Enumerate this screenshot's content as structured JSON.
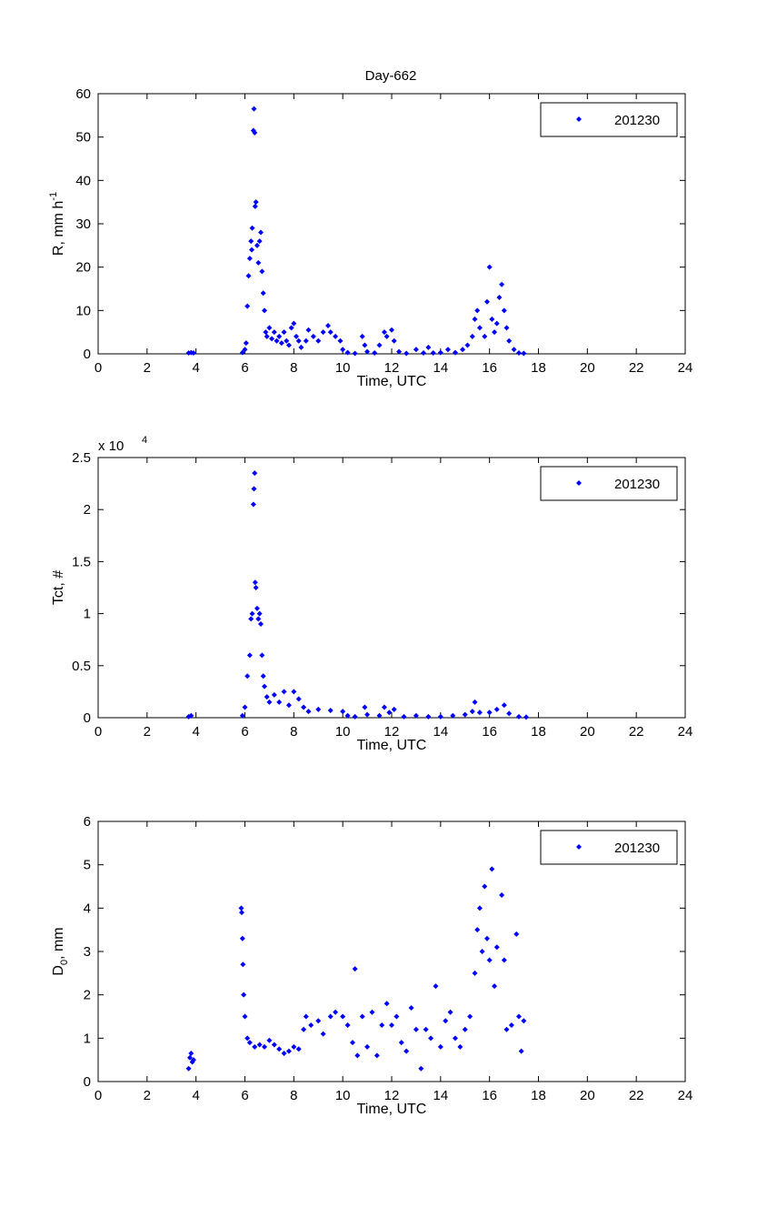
{
  "figure_title": "Day-662",
  "colors": {
    "marker": "#0000ff",
    "axis": "#000000"
  },
  "chart_data": [
    {
      "type": "scatter",
      "title": "Day-662",
      "xlabel": "Time, UTC",
      "ylabel_main": "R, mm h",
      "ylabel_sup": "-1",
      "xlim": [
        0,
        24
      ],
      "ylim": [
        0,
        60
      ],
      "xticks": [
        0,
        2,
        4,
        6,
        8,
        10,
        12,
        14,
        16,
        18,
        20,
        22,
        24
      ],
      "yticks": [
        0,
        10,
        20,
        30,
        40,
        50,
        60
      ],
      "legend": {
        "label": "201230",
        "position": "top-right"
      },
      "series": [
        {
          "name": "201230",
          "points": [
            [
              3.7,
              0.2
            ],
            [
              3.8,
              0.3
            ],
            [
              3.9,
              0.2
            ],
            [
              5.9,
              0.3
            ],
            [
              6.0,
              1
            ],
            [
              6.05,
              2.5
            ],
            [
              6.1,
              11
            ],
            [
              6.15,
              18
            ],
            [
              6.2,
              22
            ],
            [
              6.25,
              26
            ],
            [
              6.28,
              24
            ],
            [
              6.3,
              29
            ],
            [
              6.35,
              51.5
            ],
            [
              6.37,
              56.5
            ],
            [
              6.4,
              51
            ],
            [
              6.42,
              34
            ],
            [
              6.45,
              35
            ],
            [
              6.5,
              25
            ],
            [
              6.55,
              21
            ],
            [
              6.6,
              26
            ],
            [
              6.65,
              28
            ],
            [
              6.7,
              19
            ],
            [
              6.75,
              14
            ],
            [
              6.8,
              10
            ],
            [
              6.85,
              5
            ],
            [
              6.9,
              4
            ],
            [
              7.0,
              6
            ],
            [
              7.1,
              3.5
            ],
            [
              7.2,
              5
            ],
            [
              7.3,
              3
            ],
            [
              7.4,
              4
            ],
            [
              7.5,
              2.5
            ],
            [
              7.6,
              5
            ],
            [
              7.7,
              3
            ],
            [
              7.8,
              2
            ],
            [
              7.9,
              6
            ],
            [
              8.0,
              7
            ],
            [
              8.1,
              4
            ],
            [
              8.2,
              3
            ],
            [
              8.3,
              1.5
            ],
            [
              8.5,
              3
            ],
            [
              8.6,
              5.5
            ],
            [
              8.8,
              4
            ],
            [
              9.0,
              3
            ],
            [
              9.2,
              5
            ],
            [
              9.4,
              6.5
            ],
            [
              9.5,
              5
            ],
            [
              9.7,
              4
            ],
            [
              9.9,
              3
            ],
            [
              10.0,
              1
            ],
            [
              10.2,
              0.3
            ],
            [
              10.5,
              0.1
            ],
            [
              10.8,
              4
            ],
            [
              10.9,
              2
            ],
            [
              11.0,
              0.5
            ],
            [
              11.3,
              0.2
            ],
            [
              11.5,
              2
            ],
            [
              11.7,
              5
            ],
            [
              11.8,
              4
            ],
            [
              12.0,
              5.5
            ],
            [
              12.1,
              3
            ],
            [
              12.3,
              0.5
            ],
            [
              12.6,
              0.1
            ],
            [
              13.0,
              1
            ],
            [
              13.3,
              0.2
            ],
            [
              13.5,
              1.5
            ],
            [
              13.7,
              0.2
            ],
            [
              14.0,
              0.3
            ],
            [
              14.3,
              1
            ],
            [
              14.6,
              0.3
            ],
            [
              14.9,
              1
            ],
            [
              15.1,
              2
            ],
            [
              15.3,
              4
            ],
            [
              15.4,
              8
            ],
            [
              15.5,
              10
            ],
            [
              15.6,
              6
            ],
            [
              15.8,
              4
            ],
            [
              15.9,
              12
            ],
            [
              16.0,
              20
            ],
            [
              16.1,
              8
            ],
            [
              16.2,
              5
            ],
            [
              16.3,
              7
            ],
            [
              16.4,
              13
            ],
            [
              16.5,
              16
            ],
            [
              16.6,
              10
            ],
            [
              16.7,
              6
            ],
            [
              16.8,
              3
            ],
            [
              17.0,
              1
            ],
            [
              17.2,
              0.2
            ],
            [
              17.4,
              0.1
            ]
          ]
        }
      ]
    },
    {
      "type": "scatter",
      "xlabel": "Time, UTC",
      "ylabel_main": "Tct, #",
      "scale_label": "x 10",
      "scale_exp": "4",
      "xlim": [
        0,
        24
      ],
      "ylim": [
        0,
        2.5
      ],
      "xticks": [
        0,
        2,
        4,
        6,
        8,
        10,
        12,
        14,
        16,
        18,
        20,
        22,
        24
      ],
      "yticks": [
        0,
        0.5,
        1,
        1.5,
        2,
        2.5
      ],
      "ytick_labels": [
        "0",
        "0.5",
        "1",
        "1.5",
        "2",
        "2.5"
      ],
      "legend": {
        "label": "201230",
        "position": "top-right"
      },
      "series": [
        {
          "name": "201230",
          "points": [
            [
              3.7,
              0.01
            ],
            [
              3.8,
              0.02
            ],
            [
              5.9,
              0.02
            ],
            [
              6.0,
              0.1
            ],
            [
              6.1,
              0.4
            ],
            [
              6.2,
              0.6
            ],
            [
              6.25,
              0.95
            ],
            [
              6.3,
              1.0
            ],
            [
              6.35,
              2.05
            ],
            [
              6.37,
              2.2
            ],
            [
              6.4,
              2.35
            ],
            [
              6.42,
              1.3
            ],
            [
              6.45,
              1.25
            ],
            [
              6.5,
              1.05
            ],
            [
              6.55,
              0.95
            ],
            [
              6.6,
              1.0
            ],
            [
              6.65,
              0.9
            ],
            [
              6.7,
              0.6
            ],
            [
              6.75,
              0.4
            ],
            [
              6.8,
              0.3
            ],
            [
              6.9,
              0.2
            ],
            [
              7.0,
              0.15
            ],
            [
              7.2,
              0.22
            ],
            [
              7.4,
              0.15
            ],
            [
              7.6,
              0.25
            ],
            [
              7.8,
              0.12
            ],
            [
              8.0,
              0.25
            ],
            [
              8.2,
              0.18
            ],
            [
              8.4,
              0.1
            ],
            [
              8.6,
              0.06
            ],
            [
              9.0,
              0.08
            ],
            [
              9.5,
              0.07
            ],
            [
              10.0,
              0.06
            ],
            [
              10.2,
              0.02
            ],
            [
              10.5,
              0.01
            ],
            [
              10.9,
              0.1
            ],
            [
              11.0,
              0.03
            ],
            [
              11.5,
              0.02
            ],
            [
              11.7,
              0.1
            ],
            [
              11.9,
              0.05
            ],
            [
              12.1,
              0.08
            ],
            [
              12.5,
              0.01
            ],
            [
              13.0,
              0.02
            ],
            [
              13.5,
              0.01
            ],
            [
              14.0,
              0.01
            ],
            [
              14.5,
              0.02
            ],
            [
              15.0,
              0.03
            ],
            [
              15.3,
              0.06
            ],
            [
              15.4,
              0.15
            ],
            [
              15.6,
              0.05
            ],
            [
              16.0,
              0.05
            ],
            [
              16.3,
              0.08
            ],
            [
              16.6,
              0.12
            ],
            [
              16.8,
              0.04
            ],
            [
              17.2,
              0.01
            ],
            [
              17.5,
              0.005
            ]
          ]
        }
      ]
    },
    {
      "type": "scatter",
      "xlabel": "Time, UTC",
      "ylabel_main": "D",
      "ylabel_sub": "0",
      "ylabel_tail": ", mm",
      "xlim": [
        0,
        24
      ],
      "ylim": [
        0,
        6
      ],
      "xticks": [
        0,
        2,
        4,
        6,
        8,
        10,
        12,
        14,
        16,
        18,
        20,
        22,
        24
      ],
      "yticks": [
        0,
        1,
        2,
        3,
        4,
        5,
        6
      ],
      "legend": {
        "label": "201230",
        "position": "top-right"
      },
      "series": [
        {
          "name": "201230",
          "points": [
            [
              3.7,
              0.3
            ],
            [
              3.75,
              0.55
            ],
            [
              3.8,
              0.65
            ],
            [
              3.85,
              0.45
            ],
            [
              3.9,
              0.5
            ],
            [
              5.85,
              4.0
            ],
            [
              5.87,
              3.9
            ],
            [
              5.9,
              3.3
            ],
            [
              5.92,
              2.7
            ],
            [
              5.95,
              2.0
            ],
            [
              6.0,
              1.5
            ],
            [
              6.1,
              1.0
            ],
            [
              6.2,
              0.9
            ],
            [
              6.4,
              0.8
            ],
            [
              6.6,
              0.85
            ],
            [
              6.8,
              0.8
            ],
            [
              7.0,
              0.95
            ],
            [
              7.2,
              0.85
            ],
            [
              7.4,
              0.75
            ],
            [
              7.6,
              0.65
            ],
            [
              7.8,
              0.7
            ],
            [
              8.0,
              0.8
            ],
            [
              8.2,
              0.75
            ],
            [
              8.4,
              1.2
            ],
            [
              8.5,
              1.5
            ],
            [
              8.7,
              1.3
            ],
            [
              9.0,
              1.4
            ],
            [
              9.2,
              1.1
            ],
            [
              9.5,
              1.5
            ],
            [
              9.7,
              1.6
            ],
            [
              10.0,
              1.5
            ],
            [
              10.2,
              1.3
            ],
            [
              10.4,
              0.9
            ],
            [
              10.5,
              2.6
            ],
            [
              10.6,
              0.6
            ],
            [
              10.8,
              1.5
            ],
            [
              11.0,
              0.8
            ],
            [
              11.2,
              1.6
            ],
            [
              11.4,
              0.6
            ],
            [
              11.6,
              1.3
            ],
            [
              11.8,
              1.8
            ],
            [
              12.0,
              1.3
            ],
            [
              12.2,
              1.5
            ],
            [
              12.4,
              0.9
            ],
            [
              12.6,
              0.7
            ],
            [
              12.8,
              1.7
            ],
            [
              13.0,
              1.2
            ],
            [
              13.2,
              0.3
            ],
            [
              13.4,
              1.2
            ],
            [
              13.6,
              1.0
            ],
            [
              13.8,
              2.2
            ],
            [
              14.0,
              0.8
            ],
            [
              14.2,
              1.4
            ],
            [
              14.4,
              1.6
            ],
            [
              14.6,
              1.0
            ],
            [
              14.8,
              0.8
            ],
            [
              15.0,
              1.2
            ],
            [
              15.2,
              1.5
            ],
            [
              15.4,
              2.5
            ],
            [
              15.5,
              3.5
            ],
            [
              15.6,
              4.0
            ],
            [
              15.7,
              3.0
            ],
            [
              15.8,
              4.5
            ],
            [
              15.9,
              3.3
            ],
            [
              16.0,
              2.8
            ],
            [
              16.1,
              4.9
            ],
            [
              16.2,
              2.2
            ],
            [
              16.3,
              3.1
            ],
            [
              16.5,
              4.3
            ],
            [
              16.6,
              2.8
            ],
            [
              16.7,
              1.2
            ],
            [
              16.9,
              1.3
            ],
            [
              17.1,
              3.4
            ],
            [
              17.2,
              1.5
            ],
            [
              17.3,
              0.7
            ],
            [
              17.4,
              1.4
            ]
          ]
        }
      ]
    }
  ]
}
